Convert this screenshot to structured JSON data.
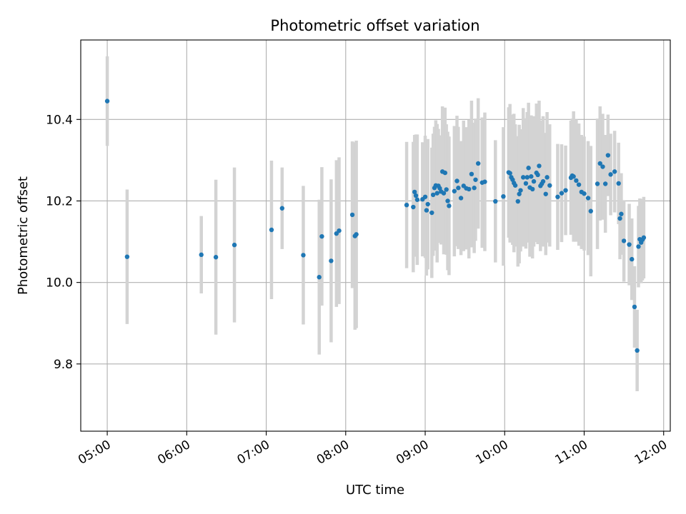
{
  "chart_data": {
    "type": "scatter",
    "title": "Photometric offset variation",
    "xlabel": "UTC time",
    "ylabel": "Photometric offset",
    "x_unit": "UTC time of day (HH:MM)",
    "xlim": [
      "04:40",
      "12:05"
    ],
    "ylim": [
      9.635,
      10.595
    ],
    "x_ticks": [
      "05:00",
      "06:00",
      "07:00",
      "08:00",
      "09:00",
      "10:00",
      "11:00",
      "12:00"
    ],
    "y_ticks": [
      9.8,
      10.0,
      10.2,
      10.4
    ],
    "y_tick_labels": [
      "9.8",
      "10.0",
      "10.2",
      "10.4"
    ],
    "grid": true,
    "colors": {
      "point": "#1f77b4",
      "errorbar": "#d3d3d3",
      "grid": "#b0b0b0",
      "axes": "#000000"
    },
    "series": [
      {
        "x": [
          "05:00",
          "05:15",
          "06:11",
          "06:22",
          "06:36",
          "07:04",
          "07:12",
          "07:28",
          "07:40",
          "07:42",
          "07:49",
          "07:53",
          "07:55",
          "08:05",
          "08:07",
          "08:08",
          "08:46",
          "08:51",
          "08:52",
          "08:53",
          "08:54",
          "08:58",
          "09:00",
          "09:01",
          "09:02",
          "09:05",
          "09:06",
          "09:07",
          "09:08",
          "09:09",
          "09:10",
          "09:11",
          "09:12",
          "09:13",
          "09:14",
          "09:15",
          "09:16",
          "09:17",
          "09:18",
          "09:22",
          "09:24",
          "09:25",
          "09:27",
          "09:29",
          "09:31",
          "09:33",
          "09:35",
          "09:37",
          "09:38",
          "09:40",
          "09:43",
          "09:45",
          "09:53",
          "09:59",
          "10:03",
          "10:04",
          "10:05",
          "10:06",
          "10:07",
          "10:08",
          "10:10",
          "10:11",
          "10:12",
          "10:14",
          "10:16",
          "10:17",
          "10:18",
          "10:19",
          "10:20",
          "10:21",
          "10:22",
          "10:24",
          "10:25",
          "10:26",
          "10:27",
          "10:28",
          "10:29",
          "10:31",
          "10:32",
          "10:34",
          "10:40",
          "10:43",
          "10:46",
          "10:50",
          "10:51",
          "10:52",
          "10:54",
          "10:56",
          "10:58",
          "11:00",
          "11:03",
          "11:05",
          "11:10",
          "11:12",
          "11:14",
          "11:16",
          "11:18",
          "11:20",
          "11:23",
          "11:26",
          "11:27",
          "11:28",
          "11:30",
          "11:34",
          "11:36",
          "11:38",
          "11:40",
          "11:41",
          "11:42",
          "11:43",
          "11:44",
          "11:45"
        ],
        "y": [
          10.445,
          10.063,
          10.068,
          10.062,
          10.092,
          10.129,
          10.182,
          10.067,
          10.013,
          10.113,
          10.053,
          10.12,
          10.127,
          10.166,
          10.114,
          10.118,
          10.19,
          10.185,
          10.222,
          10.213,
          10.203,
          10.204,
          10.21,
          10.177,
          10.192,
          10.171,
          10.215,
          10.232,
          10.238,
          10.219,
          10.237,
          10.231,
          10.223,
          10.272,
          10.219,
          10.269,
          10.228,
          10.2,
          10.188,
          10.224,
          10.249,
          10.232,
          10.207,
          10.237,
          10.231,
          10.229,
          10.266,
          10.232,
          10.252,
          10.292,
          10.245,
          10.247,
          10.199,
          10.211,
          10.27,
          10.268,
          10.258,
          10.252,
          10.244,
          10.238,
          10.199,
          10.217,
          10.226,
          10.258,
          10.243,
          10.258,
          10.281,
          10.233,
          10.26,
          10.229,
          10.248,
          10.269,
          10.264,
          10.286,
          10.237,
          10.242,
          10.248,
          10.217,
          10.258,
          10.238,
          10.21,
          10.219,
          10.226,
          10.257,
          10.262,
          10.26,
          10.25,
          10.24,
          10.222,
          10.218,
          10.207,
          10.175,
          10.242,
          10.292,
          10.284,
          10.242,
          10.312,
          10.265,
          10.272,
          10.243,
          10.157,
          10.168,
          10.102,
          10.093,
          10.057,
          9.94,
          9.833,
          10.088,
          10.106,
          10.098,
          10.105,
          10.11
        ],
        "error": [
          0.11,
          0.165,
          0.095,
          0.19,
          0.19,
          0.17,
          0.1,
          0.17,
          0.19,
          0.17,
          0.2,
          0.18,
          0.18,
          0.18,
          0.23,
          0.23,
          0.155,
          0.16,
          0.14,
          0.15,
          0.16,
          0.14,
          0.15,
          0.16,
          0.16,
          0.16,
          0.15,
          0.15,
          0.16,
          0.17,
          0.14,
          0.13,
          0.13,
          0.16,
          0.15,
          0.16,
          0.16,
          0.17,
          0.17,
          0.16,
          0.16,
          0.15,
          0.14,
          0.16,
          0.15,
          0.17,
          0.18,
          0.16,
          0.15,
          0.16,
          0.16,
          0.17,
          0.15,
          0.17,
          0.16,
          0.17,
          0.15,
          0.16,
          0.17,
          0.15,
          0.16,
          0.17,
          0.15,
          0.17,
          0.16,
          0.16,
          0.16,
          0.17,
          0.15,
          0.17,
          0.16,
          0.17,
          0.17,
          0.16,
          0.16,
          0.15,
          0.16,
          0.15,
          0.16,
          0.15,
          0.13,
          0.12,
          0.11,
          0.14,
          0.14,
          0.16,
          0.15,
          0.15,
          0.14,
          0.14,
          0.14,
          0.16,
          0.16,
          0.14,
          0.13,
          0.12,
          0.1,
          0.1,
          0.1,
          0.1,
          0.1,
          0.1,
          0.1,
          0.1,
          0.1,
          0.1,
          0.1,
          0.1,
          0.1,
          0.1,
          0.1,
          0.1
        ]
      }
    ]
  }
}
